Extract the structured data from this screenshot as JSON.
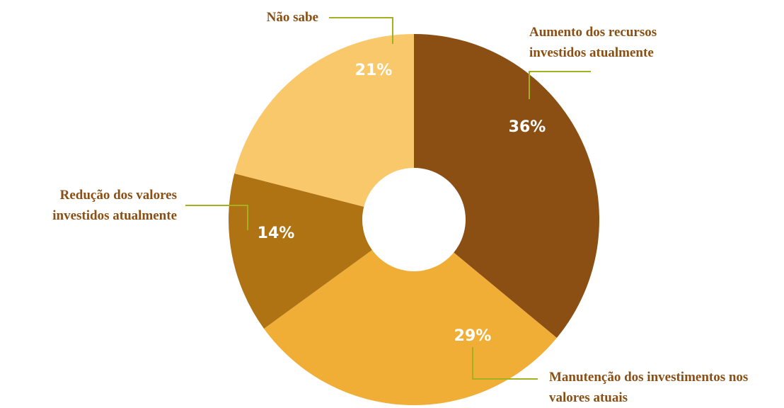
{
  "chart_data": {
    "type": "donut",
    "categories": [
      "Aumento dos recursos investidos atualmente",
      "Manutenção dos investimentos nos valores atuais",
      "Redução dos valores investidos atualmente",
      "Não sabe"
    ],
    "values": [
      36,
      29,
      14,
      21
    ],
    "value_labels": [
      "36%",
      "29%",
      "14%",
      "21%"
    ],
    "colors": [
      "#8b4f14",
      "#f0ae36",
      "#b07314",
      "#f9c86b"
    ]
  }
}
